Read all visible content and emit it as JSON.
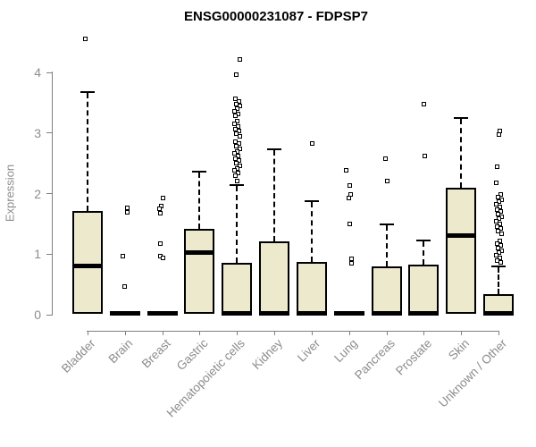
{
  "chart_data": {
    "type": "boxplot",
    "title": "ENSG00000231087 - FDPSP7",
    "ylabel": "Expression",
    "xlabel": "",
    "ylim": [
      0,
      4
    ],
    "yticks": [
      "0",
      "1",
      "2",
      "3",
      "4"
    ],
    "grid": false,
    "legend": "none",
    "categories": [
      "Bladder",
      "Brain",
      "Breast",
      "Gastric",
      "Hematopoietic cells",
      "Kidney",
      "Liver",
      "Lung",
      "Pancreas",
      "Prostate",
      "Skin",
      "Unknown / Other"
    ],
    "series": [
      {
        "category": "Bladder",
        "q1": 0.02,
        "median": 0.8,
        "q3": 1.71,
        "whisker_low": 0,
        "whisker_high": 3.68,
        "outliers": [
          4.55
        ]
      },
      {
        "category": "Brain",
        "q1": 0.0,
        "median": 0.02,
        "q3": 0.05,
        "whisker_low": 0,
        "whisker_high": 0.05,
        "outliers": [
          1.76,
          1.69,
          0.97,
          0.46
        ]
      },
      {
        "category": "Breast",
        "q1": 0.0,
        "median": 0.02,
        "q3": 0.05,
        "whisker_low": 0,
        "whisker_high": 0.05,
        "outliers": [
          1.92,
          1.8,
          1.75,
          1.67,
          1.18,
          0.97,
          0.94
        ]
      },
      {
        "category": "Gastric",
        "q1": 0.02,
        "median": 1.03,
        "q3": 1.41,
        "whisker_low": 0,
        "whisker_high": 2.36,
        "outliers": []
      },
      {
        "category": "Hematopoietic cells",
        "q1": 0.0,
        "median": 0.02,
        "q3": 0.85,
        "whisker_low": 0,
        "whisker_high": 2.14,
        "outliers": [
          4.21,
          3.97,
          3.56,
          3.52,
          3.48,
          3.44,
          3.4,
          3.36,
          3.32,
          3.28,
          3.19,
          3.15,
          3.11,
          3.07,
          3.03,
          2.99,
          2.95,
          2.86,
          2.82,
          2.78,
          2.74,
          2.7,
          2.66,
          2.62,
          2.58,
          2.54,
          2.5,
          2.46,
          2.42,
          2.38,
          2.34,
          2.3,
          2.21
        ]
      },
      {
        "category": "Kidney",
        "q1": 0.0,
        "median": 0.02,
        "q3": 1.21,
        "whisker_low": 0,
        "whisker_high": 2.73,
        "outliers": []
      },
      {
        "category": "Liver",
        "q1": 0.0,
        "median": 0.02,
        "q3": 0.87,
        "whisker_low": 0,
        "whisker_high": 1.87,
        "outliers": [
          2.83
        ]
      },
      {
        "category": "Lung",
        "q1": 0.0,
        "median": 0.02,
        "q3": 0.05,
        "whisker_low": 0,
        "whisker_high": 0.05,
        "outliers": [
          2.38,
          2.13,
          1.98,
          1.93,
          1.5,
          0.92,
          0.85
        ]
      },
      {
        "category": "Pancreas",
        "q1": 0.0,
        "median": 0.02,
        "q3": 0.8,
        "whisker_low": 0,
        "whisker_high": 1.49,
        "outliers": [
          2.57,
          2.2
        ]
      },
      {
        "category": "Prostate",
        "q1": 0.0,
        "median": 0.02,
        "q3": 0.83,
        "whisker_low": 0,
        "whisker_high": 1.23,
        "outliers": [
          3.47,
          2.62
        ]
      },
      {
        "category": "Skin",
        "q1": 0.02,
        "median": 1.31,
        "q3": 2.09,
        "whisker_low": 0,
        "whisker_high": 3.24,
        "outliers": []
      },
      {
        "category": "Unknown / Other",
        "q1": 0.0,
        "median": 0.02,
        "q3": 0.34,
        "whisker_low": 0,
        "whisker_high": 0.8,
        "outliers": [
          3.04,
          2.98,
          2.44,
          2.17,
          1.98,
          1.94,
          1.9,
          1.86,
          1.82,
          1.78,
          1.74,
          1.7,
          1.66,
          1.62,
          1.58,
          1.54,
          1.5,
          1.46,
          1.42,
          1.38,
          1.34,
          1.22,
          1.18,
          1.14,
          1.1,
          1.06,
          1.02,
          0.98,
          0.94,
          0.9,
          0.86
        ]
      }
    ],
    "colors": {
      "box_fill": "#ece9cd",
      "box_border": "#000000",
      "median": "#000000",
      "whisker": "#000000",
      "axis": "#808080",
      "axis_text": "#8c8c8c",
      "title_text": "#000000",
      "background": "#ffffff"
    }
  }
}
